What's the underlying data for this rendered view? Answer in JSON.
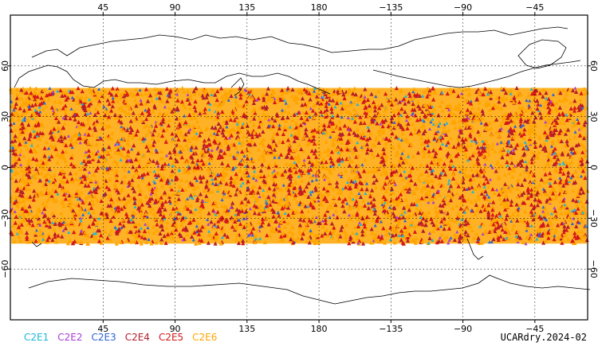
{
  "map": {
    "projection": "equirectangular",
    "lon_range": [
      -13,
      348
    ],
    "lat_range": [
      -90,
      90
    ],
    "sampled_lat_range": [
      -45,
      47
    ],
    "occluding_missions": [
      "C2E4",
      "C2E5",
      "C2E6"
    ]
  },
  "axes": {
    "top_lon_ticks": [
      "45",
      "90",
      "135",
      "180",
      "−135",
      "−90",
      "−45"
    ],
    "bottom_lon_ticks": [
      "45",
      "90",
      "135",
      "180",
      "−135",
      "−90",
      "−45"
    ],
    "left_lat_ticks": [
      "60",
      "30",
      "0",
      "−30",
      "−60"
    ],
    "right_lat_ticks": [
      "60",
      "30",
      "0",
      "−30",
      "−60"
    ]
  },
  "legend": [
    {
      "label": "C2E1",
      "color": "#1fb6d8"
    },
    {
      "label": "C2E2",
      "color": "#a63dd6"
    },
    {
      "label": "C2E3",
      "color": "#2c63d6"
    },
    {
      "label": "C2E4",
      "color": "#b31e2c"
    },
    {
      "label": "C2E5",
      "color": "#d41818"
    },
    {
      "label": "C2E6",
      "color": "#ffa500"
    }
  ],
  "credit": "UCARdry.2024-02"
}
